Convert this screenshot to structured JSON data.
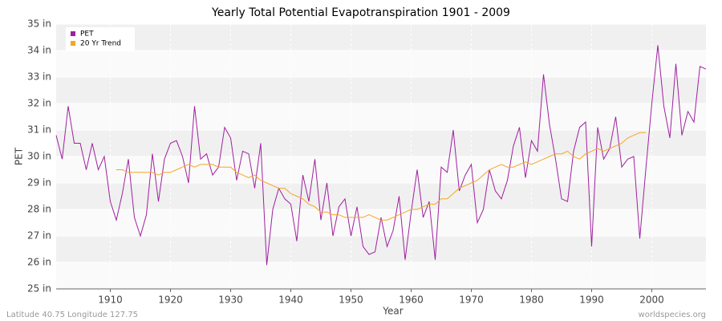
{
  "chart_data": {
    "type": "line",
    "title": "Yearly Total Potential Evapotranspiration 1901 - 2009",
    "x_label": "Year",
    "y_label": "PET",
    "footer_left": "Latitude 40.75 Longitude 127.75",
    "footer_right": "worldspecies.org",
    "x": [
      1901,
      1902,
      1903,
      1904,
      1905,
      1906,
      1907,
      1908,
      1909,
      1910,
      1911,
      1912,
      1913,
      1914,
      1915,
      1916,
      1917,
      1918,
      1919,
      1920,
      1921,
      1922,
      1923,
      1924,
      1925,
      1926,
      1927,
      1928,
      1929,
      1930,
      1931,
      1932,
      1933,
      1934,
      1935,
      1936,
      1937,
      1938,
      1939,
      1940,
      1941,
      1942,
      1943,
      1944,
      1945,
      1946,
      1947,
      1948,
      1949,
      1950,
      1951,
      1952,
      1953,
      1954,
      1955,
      1956,
      1957,
      1958,
      1959,
      1960,
      1961,
      1962,
      1963,
      1964,
      1965,
      1966,
      1967,
      1968,
      1969,
      1970,
      1971,
      1972,
      1973,
      1974,
      1975,
      1976,
      1977,
      1978,
      1979,
      1980,
      1981,
      1982,
      1983,
      1984,
      1985,
      1986,
      1987,
      1988,
      1989,
      1990,
      1991,
      1992,
      1993,
      1994,
      1995,
      1996,
      1997,
      1998,
      1999,
      2000,
      2001,
      2002,
      2003,
      2004,
      2005,
      2006,
      2007,
      2008,
      2009
    ],
    "series": [
      {
        "name": "PET",
        "color": "#a020a0",
        "values": [
          30.8,
          29.9,
          31.9,
          30.5,
          30.5,
          29.5,
          30.5,
          29.5,
          30.0,
          28.3,
          27.6,
          28.6,
          29.9,
          27.7,
          27.0,
          27.8,
          30.1,
          28.3,
          29.9,
          30.5,
          30.6,
          30.0,
          29.0,
          31.9,
          29.9,
          30.1,
          29.3,
          29.6,
          31.1,
          30.7,
          29.1,
          30.2,
          30.1,
          28.8,
          30.5,
          25.9,
          28.0,
          28.8,
          28.4,
          28.2,
          26.8,
          29.3,
          28.3,
          29.9,
          27.6,
          29.0,
          27.0,
          28.1,
          28.4,
          27.0,
          28.1,
          26.6,
          26.3,
          26.4,
          27.7,
          26.6,
          27.2,
          28.5,
          26.1,
          27.9,
          29.5,
          27.7,
          28.3,
          26.1,
          29.6,
          29.4,
          31.0,
          28.7,
          29.3,
          29.7,
          27.5,
          28.0,
          29.5,
          28.7,
          28.4,
          29.1,
          30.4,
          31.1,
          29.2,
          30.6,
          30.2,
          33.1,
          31.2,
          29.9,
          28.4,
          28.3,
          30.2,
          31.1,
          31.3,
          26.6,
          31.1,
          29.9,
          30.3,
          31.5,
          29.6,
          29.9,
          30.0,
          26.9,
          29.5,
          32.0,
          34.2,
          31.9,
          30.7,
          33.5,
          30.8,
          31.7,
          31.3,
          33.4,
          33.3
        ]
      },
      {
        "name": "20 Yr Trend",
        "color": "#f5a623",
        "values": [
          null,
          null,
          null,
          null,
          null,
          null,
          null,
          null,
          null,
          null,
          29.5,
          29.5,
          29.4,
          29.4,
          29.4,
          29.4,
          29.4,
          29.3,
          29.4,
          29.4,
          29.5,
          29.6,
          29.7,
          29.6,
          29.7,
          29.7,
          29.7,
          29.6,
          29.6,
          29.6,
          29.4,
          29.3,
          29.2,
          29.3,
          29.1,
          29.0,
          28.9,
          28.8,
          28.8,
          28.6,
          28.5,
          28.4,
          28.2,
          28.1,
          27.9,
          27.9,
          27.8,
          27.8,
          27.7,
          27.7,
          27.7,
          27.7,
          27.8,
          27.7,
          27.6,
          27.6,
          27.7,
          27.8,
          27.9,
          28.0,
          28.0,
          28.1,
          28.2,
          28.2,
          28.4,
          28.4,
          28.6,
          28.8,
          28.9,
          29.0,
          29.1,
          29.3,
          29.5,
          29.6,
          29.7,
          29.6,
          29.6,
          29.7,
          29.8,
          29.7,
          29.8,
          29.9,
          30.0,
          30.1,
          30.1,
          30.2,
          30.0,
          29.9,
          30.1,
          30.2,
          30.3,
          30.2,
          30.3,
          30.4,
          30.5,
          30.7,
          30.8,
          30.9,
          30.9,
          null,
          null,
          null,
          null,
          null,
          null,
          null,
          null,
          null,
          null
        ]
      }
    ],
    "xlim": [
      1901,
      2009
    ],
    "ylim": [
      25,
      35
    ],
    "xticks": [
      1910,
      1920,
      1930,
      1940,
      1950,
      1960,
      1970,
      1980,
      1990,
      2000
    ],
    "yticks": [
      {
        "value": 25,
        "label": "25 in"
      },
      {
        "value": 26,
        "label": "26 in"
      },
      {
        "value": 27,
        "label": "27 in"
      },
      {
        "value": 28,
        "label": "28 in"
      },
      {
        "value": 29,
        "label": "29 in"
      },
      {
        "value": 30,
        "label": "30 in"
      },
      {
        "value": 31,
        "label": "31 in"
      },
      {
        "value": 32,
        "label": "32 in"
      },
      {
        "value": 33,
        "label": "33 in"
      },
      {
        "value": 34,
        "label": "34 in"
      },
      {
        "value": 35,
        "label": "35 in"
      }
    ],
    "grid": true,
    "legend": "upper-left"
  }
}
